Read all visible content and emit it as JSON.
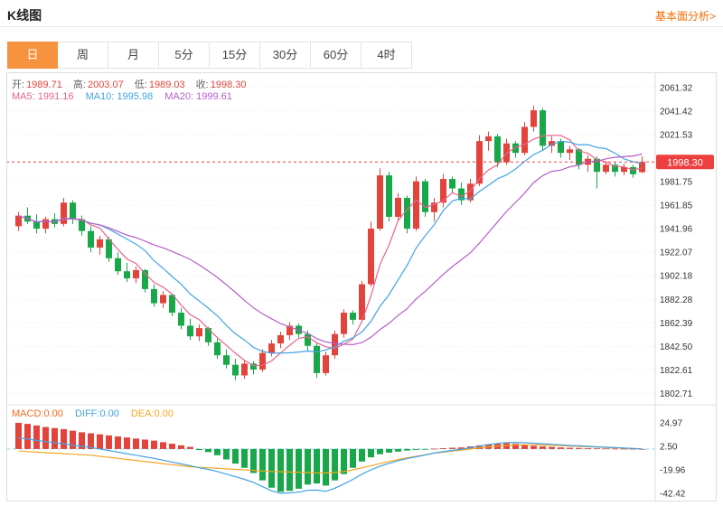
{
  "header": {
    "title": "K线图",
    "link": "基本面分析>"
  },
  "tabs": [
    {
      "id": "day",
      "label": "日",
      "active": true
    },
    {
      "id": "week",
      "label": "周",
      "active": false
    },
    {
      "id": "month",
      "label": "月",
      "active": false
    },
    {
      "id": "5min",
      "label": "5分",
      "active": false
    },
    {
      "id": "15min",
      "label": "15分",
      "active": false
    },
    {
      "id": "30min",
      "label": "30分",
      "active": false
    },
    {
      "id": "60min",
      "label": "60分",
      "active": false
    },
    {
      "id": "4hour",
      "label": "4时",
      "active": false
    }
  ],
  "info": {
    "open_label": "开:",
    "open": "1989.71",
    "high_label": "高:",
    "high": "2003.07",
    "low_label": "低:",
    "low": "1989.03",
    "close_label": "收:",
    "close": "1998.30",
    "ma5_label": "MA5:",
    "ma5": "1991.16",
    "ma10_label": "MA10:",
    "ma10": "1995.98",
    "ma20_label": "MA20:",
    "ma20": "1999.61"
  },
  "macd_info": {
    "macd_label": "MACD:",
    "macd": "0.00",
    "diff_label": "DIFF:",
    "diff": "0.00",
    "dea_label": "DEA:",
    "dea": "0.00"
  },
  "price_tag": "1998.30",
  "colors": {
    "up": "#e2443c",
    "down": "#18a84a",
    "ma5": "#e8638c",
    "ma10": "#41a3e3",
    "ma20": "#b45ec8",
    "diff": "#41a3e3",
    "dea": "#f5a623",
    "macd_label": "#f06a1e",
    "price": "#ee3f3f",
    "accent": "#f7923e",
    "link": "#f56a00",
    "grid": "#f0f0f0",
    "axis": "#dddddd",
    "tick_text": "#333333",
    "zero_line": "#8fd8ea"
  },
  "chart_data": {
    "type": "candlestick+macd",
    "main": {
      "title": "K线图 daily candles with MA5/MA10/MA20 overlays",
      "price_line": 1998.3,
      "ticks": [
        2061.32,
        2041.42,
        2021.53,
        1981.75,
        1961.85,
        1941.96,
        1922.07,
        1902.18,
        1882.28,
        1862.39,
        1842.5,
        1822.61,
        1802.71
      ],
      "ylim": [
        1796,
        2068
      ],
      "ma_periods": [
        5,
        10,
        20
      ],
      "candles": [
        [
          1944,
          1956,
          1940,
          1953
        ],
        [
          1953,
          1960,
          1946,
          1948
        ],
        [
          1948,
          1954,
          1938,
          1942
        ],
        [
          1942,
          1952,
          1938,
          1950
        ],
        [
          1950,
          1955,
          1943,
          1946
        ],
        [
          1946,
          1968,
          1944,
          1964
        ],
        [
          1964,
          1966,
          1946,
          1950
        ],
        [
          1950,
          1953,
          1936,
          1940
        ],
        [
          1940,
          1944,
          1922,
          1926
        ],
        [
          1926,
          1936,
          1920,
          1933
        ],
        [
          1933,
          1935,
          1914,
          1917
        ],
        [
          1917,
          1922,
          1903,
          1906
        ],
        [
          1906,
          1913,
          1897,
          1900
        ],
        [
          1900,
          1910,
          1896,
          1907
        ],
        [
          1907,
          1908,
          1888,
          1891
        ],
        [
          1891,
          1895,
          1876,
          1879
        ],
        [
          1879,
          1889,
          1875,
          1886
        ],
        [
          1886,
          1887,
          1868,
          1871
        ],
        [
          1871,
          1875,
          1857,
          1860
        ],
        [
          1860,
          1866,
          1848,
          1851
        ],
        [
          1851,
          1861,
          1847,
          1858
        ],
        [
          1858,
          1859,
          1843,
          1846
        ],
        [
          1846,
          1849,
          1832,
          1835
        ],
        [
          1835,
          1840,
          1824,
          1827
        ],
        [
          1827,
          1832,
          1814,
          1818
        ],
        [
          1818,
          1831,
          1815,
          1828
        ],
        [
          1828,
          1830,
          1819,
          1823
        ],
        [
          1823,
          1840,
          1821,
          1837
        ],
        [
          1837,
          1848,
          1834,
          1845
        ],
        [
          1845,
          1855,
          1841,
          1852
        ],
        [
          1852,
          1863,
          1848,
          1860
        ],
        [
          1860,
          1862,
          1850,
          1853
        ],
        [
          1853,
          1856,
          1839,
          1843
        ],
        [
          1843,
          1845,
          1816,
          1820
        ],
        [
          1820,
          1838,
          1818,
          1835
        ],
        [
          1835,
          1856,
          1832,
          1853
        ],
        [
          1853,
          1874,
          1850,
          1871
        ],
        [
          1871,
          1873,
          1861,
          1865
        ],
        [
          1865,
          1898,
          1863,
          1895
        ],
        [
          1895,
          1948,
          1893,
          1942
        ],
        [
          1942,
          1993,
          1940,
          1987
        ],
        [
          1987,
          1990,
          1948,
          1952
        ],
        [
          1952,
          1972,
          1949,
          1968
        ],
        [
          1968,
          1970,
          1938,
          1942
        ],
        [
          1942,
          1986,
          1940,
          1982
        ],
        [
          1982,
          1984,
          1952,
          1956
        ],
        [
          1956,
          1968,
          1948,
          1964
        ],
        [
          1964,
          1988,
          1960,
          1984
        ],
        [
          1984,
          1986,
          1972,
          1976
        ],
        [
          1976,
          1981,
          1962,
          1966
        ],
        [
          1966,
          1984,
          1964,
          1980
        ],
        [
          1980,
          2021,
          1978,
          2016
        ],
        [
          2016,
          2024,
          2008,
          2020
        ],
        [
          2020,
          2022,
          1994,
          1998
        ],
        [
          1998,
          2018,
          1996,
          2014
        ],
        [
          2014,
          2016,
          2002,
          2006
        ],
        [
          2006,
          2032,
          2004,
          2028
        ],
        [
          2028,
          2046,
          2024,
          2042
        ],
        [
          2042,
          2044,
          2008,
          2012
        ],
        [
          2012,
          2020,
          2006,
          2016
        ],
        [
          2016,
          2018,
          2002,
          2006
        ],
        [
          2006,
          2012,
          2000,
          2009
        ],
        [
          2009,
          2010,
          1992,
          1996
        ],
        [
          1996,
          2004,
          1990,
          2001
        ],
        [
          2001,
          2003,
          1976,
          1990
        ],
        [
          1990,
          1999,
          1988,
          1996
        ],
        [
          1996,
          1998,
          1986,
          1990
        ],
        [
          1990,
          1997,
          1987,
          1994
        ],
        [
          1994,
          1996,
          1985,
          1988
        ],
        [
          1989.71,
          2003.07,
          1989.03,
          1998.3
        ]
      ]
    },
    "macd": {
      "ticks": [
        24.97,
        2.5,
        -19.96,
        -42.42
      ],
      "ylim": [
        -48,
        30
      ],
      "hist_rule": "hist = 2 * (diff - dea)",
      "diff": [
        10.5,
        9.5,
        8.25,
        7,
        6,
        5,
        3.75,
        2.5,
        1.5,
        0,
        -1.5,
        -3,
        -4.5,
        -6,
        -7.5,
        -9,
        -10.75,
        -12.5,
        -14.25,
        -16,
        -18,
        -19.5,
        -21.5,
        -24,
        -26.5,
        -29,
        -32,
        -36,
        -40,
        -42.3,
        -42,
        -41.3,
        -39.5,
        -39.3,
        -40.5,
        -37.5,
        -33.5,
        -29,
        -24,
        -20,
        -16.5,
        -13.75,
        -11.25,
        -9.25,
        -7.4,
        -5.75,
        -3.85,
        -2.6,
        -1.4,
        -0.25,
        1.25,
        2.75,
        4.25,
        5.3,
        6.15,
        6.3,
        6,
        5.5,
        5.05,
        4.5,
        3.95,
        3.4,
        3,
        2.6,
        2.1,
        1.75,
        1.4,
        0.95,
        0.5,
        0
      ],
      "dea": [
        -2,
        -2.5,
        -3,
        -3.5,
        -4,
        -4.5,
        -5,
        -5.5,
        -6,
        -7,
        -8,
        -9,
        -10,
        -11,
        -12,
        -13,
        -14,
        -15,
        -16,
        -17,
        -17.5,
        -18,
        -18.5,
        -19,
        -19.5,
        -20,
        -20.5,
        -21,
        -21.5,
        -21.8,
        -22,
        -22.3,
        -22.5,
        -22.8,
        -23,
        -22.5,
        -21.5,
        -20,
        -18,
        -16,
        -14,
        -12,
        -10,
        -8.5,
        -7,
        -5.5,
        -4,
        -3,
        -2,
        -1,
        0,
        1,
        2,
        2.8,
        3.4,
        3.8,
        4,
        4,
        3.8,
        3.5,
        3.2,
        2.8,
        2.5,
        2.2,
        1.8,
        1.5,
        1.2,
        0.8,
        0.4,
        0
      ]
    }
  }
}
